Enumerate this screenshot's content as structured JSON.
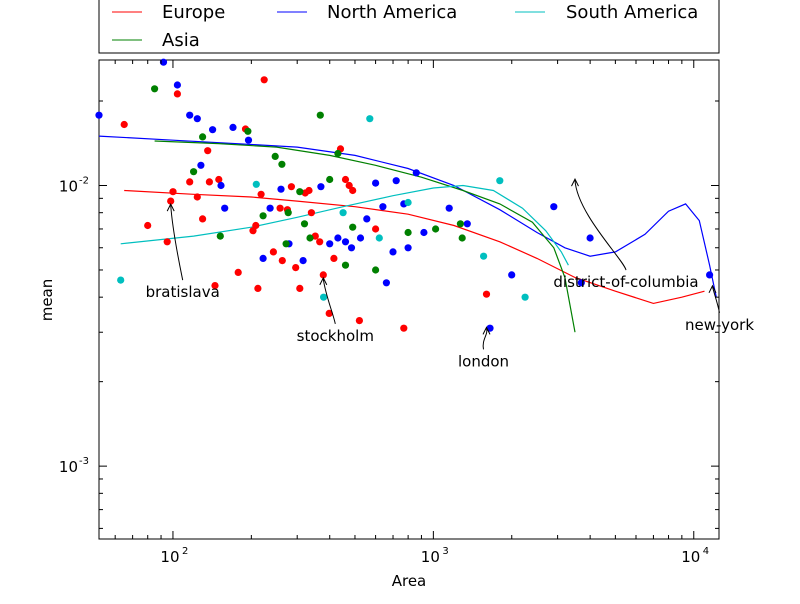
{
  "chart_data": {
    "type": "scatter",
    "xlabel": "Area",
    "ylabel": "mean",
    "xscale": "log",
    "yscale": "log",
    "xlim": [
      52,
      12500
    ],
    "ylim": [
      0.00055,
      0.028
    ],
    "grid": false,
    "legend_placement": "top",
    "x_ticks": [
      {
        "base": "10",
        "exp": "2",
        "value": 100
      },
      {
        "base": "10",
        "exp": "3",
        "value": 1000
      },
      {
        "base": "10",
        "exp": "4",
        "value": 10000
      }
    ],
    "y_ticks": [
      {
        "base": "10",
        "exp": "-3",
        "value": 0.001
      },
      {
        "base": "10",
        "exp": "-2",
        "value": 0.01
      }
    ],
    "series": [
      {
        "name": "Europe",
        "color": "#ff0000",
        "points": [
          [
            65,
            0.0165
          ],
          [
            80,
            0.0072
          ],
          [
            95,
            0.0063
          ],
          [
            98,
            0.0088
          ],
          [
            100,
            0.0095
          ],
          [
            104,
            0.0212
          ],
          [
            116,
            0.0103
          ],
          [
            124,
            0.0091
          ],
          [
            130,
            0.0076
          ],
          [
            136,
            0.0133
          ],
          [
            138,
            0.0103
          ],
          [
            145,
            0.0044
          ],
          [
            150,
            0.0105
          ],
          [
            178,
            0.0049
          ],
          [
            190,
            0.0159
          ],
          [
            203,
            0.0069
          ],
          [
            208,
            0.0072
          ],
          [
            212,
            0.0043
          ],
          [
            218,
            0.0093
          ],
          [
            224,
            0.0238
          ],
          [
            243,
            0.0058
          ],
          [
            258,
            0.0083
          ],
          [
            263,
            0.0054
          ],
          [
            275,
            0.0082
          ],
          [
            285,
            0.0099
          ],
          [
            296,
            0.0051
          ],
          [
            307,
            0.0043
          ],
          [
            322,
            0.0094
          ],
          [
            333,
            0.0096
          ],
          [
            340,
            0.008
          ],
          [
            352,
            0.0066
          ],
          [
            366,
            0.0063
          ],
          [
            378,
            0.0048
          ],
          [
            398,
            0.0035
          ],
          [
            415,
            0.0055
          ],
          [
            440,
            0.0135
          ],
          [
            460,
            0.0105
          ],
          [
            475,
            0.01
          ],
          [
            490,
            0.0096
          ],
          [
            520,
            0.0033
          ],
          [
            600,
            0.007
          ],
          [
            770,
            0.0031
          ],
          [
            1600,
            0.0041
          ]
        ]
      },
      {
        "name": "North America",
        "color": "#0000ff",
        "points": [
          [
            52,
            0.0178
          ],
          [
            92,
            0.0275
          ],
          [
            104,
            0.0228
          ],
          [
            116,
            0.0178
          ],
          [
            124,
            0.0173
          ],
          [
            128,
            0.0118
          ],
          [
            142,
            0.0158
          ],
          [
            153,
            0.01
          ],
          [
            158,
            0.0083
          ],
          [
            170,
            0.0161
          ],
          [
            195,
            0.0145
          ],
          [
            222,
            0.0055
          ],
          [
            236,
            0.0083
          ],
          [
            260,
            0.0097
          ],
          [
            279,
            0.0062
          ],
          [
            316,
            0.0054
          ],
          [
            370,
            0.0099
          ],
          [
            400,
            0.0062
          ],
          [
            430,
            0.0065
          ],
          [
            460,
            0.0063
          ],
          [
            485,
            0.006
          ],
          [
            525,
            0.0065
          ],
          [
            555,
            0.0076
          ],
          [
            600,
            0.0102
          ],
          [
            640,
            0.0084
          ],
          [
            660,
            0.0045
          ],
          [
            700,
            0.0058
          ],
          [
            720,
            0.0104
          ],
          [
            770,
            0.0086
          ],
          [
            800,
            0.006
          ],
          [
            860,
            0.0111
          ],
          [
            920,
            0.0068
          ],
          [
            1150,
            0.0083
          ],
          [
            1350,
            0.0073
          ],
          [
            1650,
            0.0031
          ],
          [
            2000,
            0.0048
          ],
          [
            2900,
            0.0084
          ],
          [
            3700,
            0.0045
          ],
          [
            4000,
            0.0065
          ],
          [
            11500,
            0.0048
          ]
        ]
      },
      {
        "name": "Asia",
        "color": "#008000",
        "points": [
          [
            85,
            0.0221
          ],
          [
            120,
            0.0112
          ],
          [
            130,
            0.0149
          ],
          [
            152,
            0.0066
          ],
          [
            194,
            0.0156
          ],
          [
            222,
            0.0078
          ],
          [
            247,
            0.0127
          ],
          [
            262,
            0.0119
          ],
          [
            272,
            0.0062
          ],
          [
            277,
            0.008
          ],
          [
            307,
            0.0095
          ],
          [
            320,
            0.0073
          ],
          [
            336,
            0.0065
          ],
          [
            368,
            0.0178
          ],
          [
            400,
            0.0105
          ],
          [
            430,
            0.013
          ],
          [
            460,
            0.0052
          ],
          [
            490,
            0.0071
          ],
          [
            600,
            0.005
          ],
          [
            800,
            0.0068
          ],
          [
            1020,
            0.007
          ],
          [
            1270,
            0.0073
          ],
          [
            1290,
            0.0065
          ]
        ]
      },
      {
        "name": "South America",
        "color": "#00bfbf",
        "points": [
          [
            63,
            0.0046
          ],
          [
            209,
            0.0101
          ],
          [
            379,
            0.004
          ],
          [
            450,
            0.008
          ],
          [
            570,
            0.0173
          ],
          [
            620,
            0.0065
          ],
          [
            800,
            0.0087
          ],
          [
            1560,
            0.0056
          ],
          [
            1800,
            0.0104
          ],
          [
            2250,
            0.004
          ]
        ]
      }
    ],
    "trend_lines": [
      {
        "name": "Europe",
        "color": "#ff0000",
        "points": [
          [
            65,
            0.0096
          ],
          [
            120,
            0.0093
          ],
          [
            200,
            0.0091
          ],
          [
            300,
            0.0088
          ],
          [
            500,
            0.0084
          ],
          [
            800,
            0.0079
          ],
          [
            1200,
            0.0072
          ],
          [
            1800,
            0.0063
          ],
          [
            2500,
            0.0055
          ],
          [
            3500,
            0.0047
          ],
          [
            5000,
            0.0042
          ],
          [
            7000,
            0.0038
          ],
          [
            9000,
            0.004
          ],
          [
            11000,
            0.0042
          ]
        ]
      },
      {
        "name": "North America",
        "color": "#0000ff",
        "points": [
          [
            52,
            0.015
          ],
          [
            100,
            0.0145
          ],
          [
            200,
            0.014
          ],
          [
            300,
            0.0137
          ],
          [
            500,
            0.0128
          ],
          [
            800,
            0.0115
          ],
          [
            1200,
            0.01
          ],
          [
            1800,
            0.0082
          ],
          [
            2500,
            0.0068
          ],
          [
            3200,
            0.006
          ],
          [
            4000,
            0.0056
          ],
          [
            5000,
            0.0058
          ],
          [
            6500,
            0.0067
          ],
          [
            8000,
            0.0081
          ],
          [
            9300,
            0.0086
          ],
          [
            10500,
            0.0075
          ],
          [
            11500,
            0.0052
          ],
          [
            12200,
            0.004
          ]
        ]
      },
      {
        "name": "Asia",
        "color": "#008000",
        "points": [
          [
            85,
            0.0144
          ],
          [
            150,
            0.0141
          ],
          [
            250,
            0.0137
          ],
          [
            400,
            0.0128
          ],
          [
            600,
            0.0118
          ],
          [
            900,
            0.0107
          ],
          [
            1300,
            0.0096
          ],
          [
            1800,
            0.0086
          ],
          [
            2400,
            0.0074
          ],
          [
            2900,
            0.006
          ],
          [
            3200,
            0.0047
          ],
          [
            3500,
            0.003
          ]
        ]
      },
      {
        "name": "South America",
        "color": "#00bfbf",
        "points": [
          [
            63,
            0.0062
          ],
          [
            120,
            0.0066
          ],
          [
            200,
            0.0071
          ],
          [
            300,
            0.0077
          ],
          [
            450,
            0.0084
          ],
          [
            700,
            0.0092
          ],
          [
            1000,
            0.0098
          ],
          [
            1300,
            0.01
          ],
          [
            1700,
            0.0096
          ],
          [
            2200,
            0.0083
          ],
          [
            2700,
            0.0069
          ],
          [
            3100,
            0.0058
          ],
          [
            3300,
            0.0052
          ]
        ]
      }
    ],
    "annotations": [
      {
        "text": "bratislava",
        "xy": [
          98,
          0.0088
        ]
      },
      {
        "text": "stockholm",
        "xy": [
          378,
          0.0048
        ]
      },
      {
        "text": "london",
        "xy": [
          1600,
          0.0032
        ]
      },
      {
        "text": "district-of-columbia",
        "xy": [
          3500,
          0.0108
        ]
      },
      {
        "text": "new-york",
        "xy": [
          11800,
          0.0045
        ]
      }
    ]
  }
}
